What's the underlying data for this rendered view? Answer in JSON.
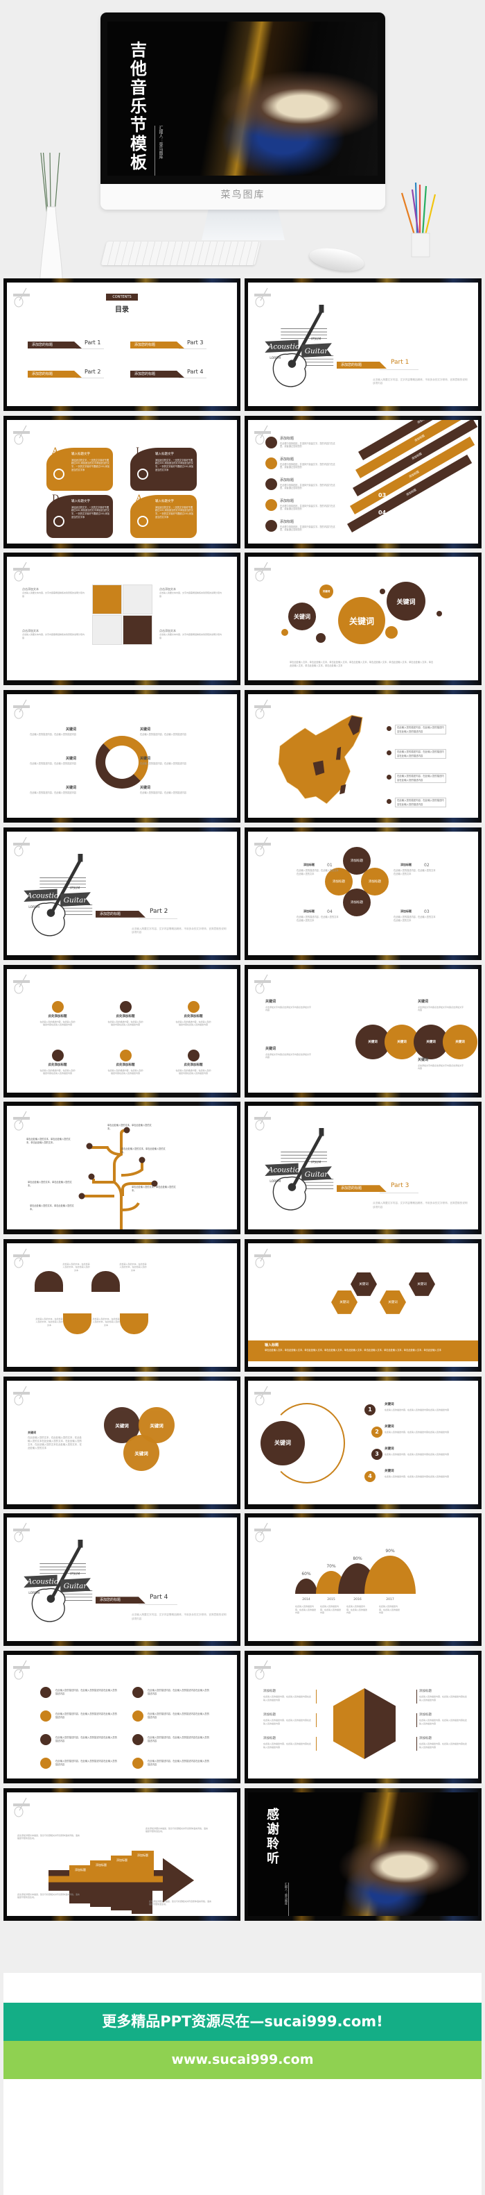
{
  "colors": {
    "brown": "#4e3024",
    "orange": "#c9821b",
    "banner_teal": "#14ae86",
    "banner_green": "#8fd151"
  },
  "hero": {
    "title": "吉他音乐节模板",
    "presenter": "汇报人：菜鸟图库",
    "monitor_brand": "菜鸟图库"
  },
  "logo": {
    "word1": "Acoustic",
    "word2": "Guitar",
    "lorem": "LOREM",
    "ipsum": "IPSUM"
  },
  "slides": [
    {
      "type": "contents",
      "label": "CONTENTS",
      "title": "目录",
      "items": [
        {
          "label": "添加您的标题",
          "part": "Part 1",
          "color": "brown"
        },
        {
          "label": "添加您的标题",
          "part": "Part 3",
          "color": "orange"
        },
        {
          "label": "添加您的标题",
          "part": "Part 2",
          "color": "orange"
        },
        {
          "label": "添加您的标题",
          "part": "Part 4",
          "color": "brown"
        }
      ]
    },
    {
      "type": "section",
      "label": "添加您的标题",
      "part": "Part 1",
      "color": "orange",
      "desc": "点击输入简要文字内容，文字内容需概括精炼，不用多余的文字修饰，言简意赅的说明该项内容"
    },
    {
      "type": "aida",
      "cards": [
        {
          "letter": "A",
          "title": "输入标题文字",
          "text": "添加适当的文字，一页的文字最好不要超过200,添加适当的文字添加适当的文字，一页的文字最好不要超过200,添加适当的文字添",
          "color": "orange",
          "icon": "sync-icon"
        },
        {
          "letter": "I",
          "title": "输入标题文字",
          "text": "添加适当的文字，一页的文字最好不要超过200,添加适当的文字添加适当的文字，一页的文字最好不要超过200,添加适当的文字添",
          "color": "brown",
          "icon": "box-icon"
        },
        {
          "letter": "D",
          "title": "输入标题文字",
          "text": "添加适当的文字，一页的文字最好不要超过200,添加适当的文字添加适当的文字，一页的文字最好不要超过200,添加适当的文字添",
          "color": "brown",
          "icon": "signal-icon"
        },
        {
          "letter": "A",
          "title": "输入标题文字",
          "text": "添加适当的文字，一页的文字最好不要超过200,添加适当的文字添加适当的文字，一页的文字最好不要超过200,添加适当的文字添",
          "color": "orange",
          "icon": "cone-icon"
        }
      ]
    },
    {
      "type": "stairs",
      "items": [
        {
          "title": "添加标题",
          "text": "在此框中选择粘贴，并选择只保留文字。您的内容打在这里，或者通过复制您的",
          "num": "01",
          "step": "添加标题"
        },
        {
          "title": "添加标题",
          "text": "在此框中选择粘贴，并选择只保留文字。您的内容打在这里，或者通过复制您的",
          "num": "02",
          "step": "添加标题"
        },
        {
          "title": "添加标题",
          "text": "在此框中选择粘贴，并选择只保留文字。您的内容打在这里，或者通过复制您的",
          "num": "03",
          "step": "添加标题"
        },
        {
          "title": "添加标题",
          "text": "在此框中选择粘贴，并选择只保留文字。您的内容打在这里，或者通过复制您的",
          "num": "04",
          "step": "添加标题"
        },
        {
          "title": "添加标题",
          "text": "在此框中选择粘贴，并选择只保留文字。您的内容打在这里，或者通过复制您的",
          "num": "05",
          "step": "添加标题"
        }
      ]
    },
    {
      "type": "puzzle",
      "items": [
        {
          "title": "点击添加文本",
          "text": "点击输入简要文本内容，文字内容需概括精炼言简意赅的说明分项内容",
          "icon": "pencil-ruler-icon"
        },
        {
          "title": "点击添加文本",
          "text": "点击输入简要文本内容，文字内容需概括精炼言简意赅的说明分项内容",
          "icon": "clipboard-icon"
        },
        {
          "title": "点击添加文本",
          "text": "点击输入简要文本内容，文字内容需概括精炼言简意赅的说明分项内容",
          "icon": "flask-icon"
        },
        {
          "title": "点击添加文本",
          "text": "点击输入简要文本内容，文字内容需概括精炼言简意赅的说明分项内容",
          "icon": "lightbulb-icon"
        }
      ]
    },
    {
      "type": "bubbles",
      "big": "关键词",
      "left": "关键词",
      "right": "关键词",
      "small": "关键词",
      "caption": "单击此处输入文本，单击此处输入文本，单击此处输入文本，单击此处输入文本，单击此处输入文本，单击此处输入文本，单击此处输入文本，单击此处输入文本，单击此处输入文本，单击此处输入文本"
    },
    {
      "type": "ring",
      "items": [
        {
          "title": "关键词",
          "text": "在此输入您的描述内容，在此输入您的描述内容"
        },
        {
          "title": "关键词",
          "text": "在此输入您的描述内容，在此输入您的描述内容"
        },
        {
          "title": "关键词",
          "text": "在此输入您的描述内容，在此输入您的描述内容"
        },
        {
          "title": "关键词",
          "text": "在此输入您的描述内容，在此输入您的描述内容"
        },
        {
          "title": "关键词",
          "text": "在此输入您的描述内容，在此输入您的描述内容"
        },
        {
          "title": "关键词",
          "text": "在此输入您的描述内容，在此输入您的描述内容"
        }
      ]
    },
    {
      "type": "map",
      "items": [
        "在此输入您的描述内容，在此输入您的描述内容在此输入您的描述内容",
        "在此输入您的描述内容，在此输入您的描述内容在此输入您的描述内容",
        "在此输入您的描述内容，在此输入您的描述内容在此输入您的描述内容",
        "在此输入您的描述内容，在此输入您的描述内容在此输入您的描述内容"
      ]
    },
    {
      "type": "section",
      "label": "添加您的标题",
      "part": "Part 2",
      "color": "brown",
      "desc": "点击输入简要文字内容，文字内容需概括精炼，不用多余的文字修饰，言简意赅的说明该项内容"
    },
    {
      "type": "clover",
      "items": [
        {
          "num": "01",
          "title": "添加标题",
          "text": "在此输入您的描述内容，在此输入您的文本在此输入您的文本",
          "petal": "添加标题",
          "icon": "microphone-icon"
        },
        {
          "num": "02",
          "title": "添加标题",
          "text": "在此输入您的描述内容，在此输入您的文本在此输入您的文本",
          "petal": "添加标题",
          "icon": "lightbulb-icon"
        },
        {
          "num": "03",
          "title": "添加标题",
          "text": "在此输入您的描述内容，在此输入您的文本在此输入您的文本",
          "petal": "添加标题",
          "icon": "hand-icon"
        },
        {
          "num": "04",
          "title": "添加标题",
          "text": "在此输入您的描述内容，在此输入您的文本在此输入您的文本",
          "petal": "添加标题",
          "icon": "share-icon"
        }
      ]
    },
    {
      "type": "icongrid",
      "items": [
        {
          "title": "此处添加标题",
          "text": "在此输入您的描述内容，在此输入您的描述内容在此输入您的描述内容",
          "icon": "heart-icon",
          "color": "orange"
        },
        {
          "title": "此处添加标题",
          "text": "在此输入您的描述内容，在此输入您的描述内容在此输入您的描述内容",
          "icon": "phone-icon",
          "color": "brown"
        },
        {
          "title": "此处添加标题",
          "text": "在此输入您的描述内容，在此输入您的描述内容在此输入您的描述内容",
          "icon": "hat-icon",
          "color": "orange"
        },
        {
          "title": "此处添加标题",
          "text": "在此输入您的描述内容，在此输入您的描述内容在此输入您的描述内容",
          "icon": "paper-plane-icon",
          "color": "brown"
        },
        {
          "title": "此处添加标题",
          "text": "在此输入您的描述内容，在此输入您的描述内容在此输入您的描述内容",
          "icon": "mail-icon",
          "color": "orange"
        },
        {
          "title": "此处添加标题",
          "text": "在此输入您的描述内容，在此输入您的描述内容在此输入您的描述内容",
          "icon": "badge-icon",
          "color": "brown"
        }
      ]
    },
    {
      "type": "chain",
      "circles": [
        "关键词",
        "关键词",
        "关键词",
        "关键词"
      ],
      "notes": [
        {
          "title": "关键词",
          "text": "点击添加文字内容点击添加文字内容点击添加文字内容"
        },
        {
          "title": "关键词",
          "text": "点击添加文字内容点击添加文字内容点击添加文字内容"
        },
        {
          "title": "关键词",
          "text": "点击添加文字内容点击添加文字内容点击添加文字内容"
        },
        {
          "title": "关键词",
          "text": "点击添加文字内容点击添加文字内容点击添加文字内容"
        }
      ]
    },
    {
      "type": "tree",
      "items": [
        "单击此处输入您的文本，单击此处输入您的文本，单击此处输入您的文本。",
        "单击此处输入您的文本，单击此处输入您的文本。",
        "单击此处输入您的文本，单击此处输入您的文本。",
        "单击此处输入您的文本，单击此处输入您的文本。",
        "单击此处输入您的文本，单击此处输入您的文本。",
        "单击此处输入您的文本，单击此处输入您的文本。"
      ]
    },
    {
      "type": "section",
      "label": "添加您的标题",
      "part": "Part 3",
      "color": "orange",
      "desc": "点击输入简要文字内容，文字内容需概括精炼，不用多余的文字修饰，言简意赅的说明该项内容"
    },
    {
      "type": "waves",
      "items": [
        {
          "text": "此处输入您的文本，在此处输入您的文本，在此处输入您的文本",
          "icon": "lock-icon"
        },
        {
          "text": "此处输入您的文本，在此处输入您的文本，在此处输入您的文本",
          "icon": "tag-icon"
        },
        {
          "text": "此处输入您的文本，在此处输入您的文本，在此处输入您的文本",
          "icon": "graduation-cap-icon"
        },
        {
          "text": "此处输入您的文本，在此处输入您的文本，在此处输入您的文本",
          "icon": "disc-icon"
        }
      ]
    },
    {
      "type": "hex",
      "items": [
        "关键词",
        "关键词",
        "关键词",
        "关键词"
      ],
      "band_title": "输入标题",
      "band_text": "单击此处输入文本，单击此处输入文本，单击此处输入文本，单击此处输入文本，单击此处输入文本，单击此处输入文本，单击此处输入文本，单击此处输入文本，单击此处输入文本"
    },
    {
      "type": "venn",
      "title": "关键词",
      "text": "在此处输入您的文本，在此处输入您的文本，在此处输入您的文本在此处输入您的文本，在此处输入您的文本，在此处输入您的文本在此处输入您的文本，在此处输入您的文本",
      "circles": [
        {
          "label": "关键词",
          "icon": "handshake-icon"
        },
        {
          "label": "关键词",
          "icon": "broadcast-icon"
        },
        {
          "label": "关键词",
          "icon": "globe-icon"
        }
      ]
    },
    {
      "type": "numbered",
      "center": "关键词",
      "items": [
        {
          "num": "1",
          "title": "关键词",
          "text": "在此输入您的描述内容，在此输入您的描述内容在此输入您的描述内容"
        },
        {
          "num": "2",
          "title": "关键词",
          "text": "在此输入您的描述内容，在此输入您的描述内容在此输入您的描述内容"
        },
        {
          "num": "3",
          "title": "关键词",
          "text": "在此输入您的描述内容，在此输入您的描述内容在此输入您的描述内容"
        },
        {
          "num": "4",
          "title": "关键词",
          "text": "在此输入您的描述内容，在此输入您的描述内容在此输入您的描述内容"
        }
      ]
    },
    {
      "type": "section",
      "label": "添加您的标题",
      "part": "Part 4",
      "color": "brown",
      "desc": "点击输入简要文字内容，文字内容需概括精炼，不用多余的文字修饰，言简意赅的说明该项内容"
    },
    {
      "type": "humps",
      "items": [
        {
          "year": "2014",
          "value": 60,
          "label": "60%",
          "text": "在此输入您的描述内容，在此输入您的描述内容"
        },
        {
          "year": "2015",
          "value": 70,
          "label": "70%",
          "text": "在此输入您的描述内容，在此输入您的描述内容"
        },
        {
          "year": "2016",
          "value": 80,
          "label": "80%",
          "text": "在此输入您的描述内容，在此输入您的描述内容"
        },
        {
          "year": "2017",
          "value": 90,
          "label": "90%",
          "text": "在此输入您的描述内容，在此输入您的描述内容"
        }
      ]
    },
    {
      "type": "iconlist",
      "items": [
        {
          "text": "在此输入您的描述内容，在此输入您的描述内容在此输入您的描述内容",
          "icon": "paper-plane-icon",
          "color": "brown"
        },
        {
          "text": "在此输入您的描述内容，在此输入您的描述内容在此输入您的描述内容",
          "icon": "paper-plane-icon",
          "color": "brown"
        },
        {
          "text": "在此输入您的描述内容，在此输入您的描述内容在此输入您的描述内容",
          "icon": "users-icon",
          "color": "orange"
        },
        {
          "text": "在此输入您的描述内容，在此输入您的描述内容在此输入您的描述内容",
          "icon": "users-icon",
          "color": "orange"
        },
        {
          "text": "在此输入您的描述内容，在此输入您的描述内容在此输入您的描述内容",
          "icon": "bar-chart-icon",
          "color": "brown"
        },
        {
          "text": "在此输入您的描述内容，在此输入您的描述内容在此输入您的描述内容",
          "icon": "bar-chart-icon",
          "color": "brown"
        },
        {
          "text": "在此输入您的描述内容，在此输入您的描述内容在此输入您的描述内容",
          "icon": "lightbulb-icon",
          "color": "orange"
        },
        {
          "text": "在此输入您的描述内容，在此输入您的描述内容在此输入您的描述内容",
          "icon": "lightbulb-icon",
          "color": "orange"
        }
      ]
    },
    {
      "type": "hexsix",
      "items": [
        {
          "title": "添加标题",
          "text": "在此输入您的描述内容，在此输入您的描述内容在此输入您的描述内容"
        },
        {
          "title": "添加标题",
          "text": "在此输入您的描述内容，在此输入您的描述内容在此输入您的描述内容"
        },
        {
          "title": "添加标题",
          "text": "在此输入您的描述内容，在此输入您的描述内容在此输入您的描述内容"
        },
        {
          "title": "添加标题",
          "text": "在此输入您的描述内容，在此输入您的描述内容在此输入您的描述内容"
        },
        {
          "title": "添加标题",
          "text": "在此输入您的描述内容，在此输入您的描述内容在此输入您的描述内容"
        },
        {
          "title": "添加标题",
          "text": "在此输入您的描述内容，在此输入您的描述内容在此输入您的描述内容"
        }
      ]
    },
    {
      "type": "arrow",
      "labels": [
        "添加标题",
        "添加标题",
        "添加标题",
        "添加标题"
      ],
      "notes": [
        "此处添加详细文本描述，建议与标题相关并符合整体语言风格，语言描述尽量简洁生动。",
        "此处添加详细文本描述，建议与标题相关并符合整体语言风格，语言描述尽量简洁生动。",
        "此处添加详细文本描述，建议与标题相关并符合整体语言风格，语言描述尽量简洁生动。",
        "此处添加详细文本描述，建议与标题相关并符合整体语言风格，语言描述尽量简洁生动。"
      ]
    },
    {
      "type": "end",
      "title": "感谢聆听",
      "presenter": "汇报人：菜鸟图库"
    }
  ],
  "footer": {
    "promo": "更多精品PPT资源尽在—sucai999.com!",
    "url": "www.sucai999.com"
  }
}
